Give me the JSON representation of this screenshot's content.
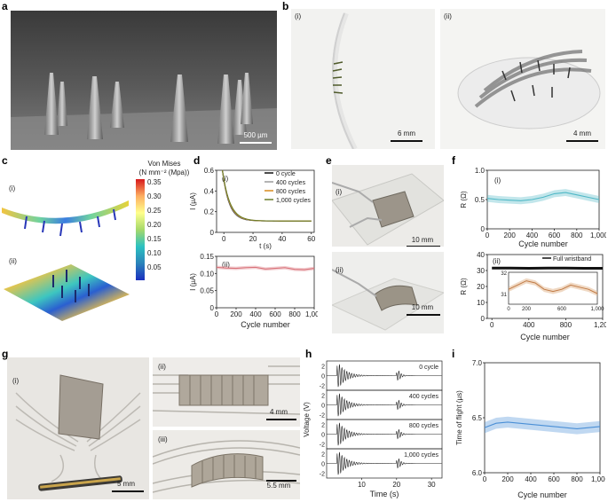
{
  "panel_labels": {
    "a": "a",
    "b": "b",
    "c": "c",
    "d": "d",
    "e": "e",
    "f": "f",
    "g": "g",
    "h": "h",
    "i": "i"
  },
  "a": {
    "scale_bar": "500 µm"
  },
  "b": {
    "sub1": "(i)",
    "sub2": "(ii)",
    "scale1": "6 mm",
    "scale2": "4 mm"
  },
  "c": {
    "sub1": "(i)",
    "sub2": "(ii)",
    "colorbar_title_1": "Von Mises",
    "colorbar_title_2": "(N mm⁻² (Mpa))",
    "colorbar_ticks": [
      "0.35",
      "0.30",
      "0.25",
      "0.20",
      "0.15",
      "0.10",
      "0.05"
    ]
  },
  "e": {
    "sub1": "(i)",
    "sub2": "(ii)",
    "scale1": "10 mm",
    "scale2": "10 mm"
  },
  "g": {
    "sub1": "(i)",
    "sub2": "(ii)",
    "sub3": "(iii)",
    "scale1": "5 mm",
    "scale2": "4 mm",
    "scale3": "5.5 mm"
  },
  "colors": {
    "black": "#111111",
    "gray": "#9a9a9a",
    "orange": "#d98b1d",
    "green": "#6b7d2a",
    "cyan": "#4fb8c6",
    "red": "#d9737a",
    "blue": "#4a8fd6",
    "tan": "#e2b48a"
  },
  "chart_data": [
    {
      "id": "d_i",
      "type": "line",
      "sub": "(i)",
      "xlabel": "t (s)",
      "ylabel": "I (µA)",
      "xlim": [
        -5,
        62
      ],
      "ylim": [
        0,
        0.6
      ],
      "xticks": [
        "0",
        "20",
        "40",
        "60"
      ],
      "yticks": [
        "0",
        "0.2",
        "0.4",
        "0.6"
      ],
      "series": [
        {
          "name": "0 cycle"
        },
        {
          "name": "400 cycles"
        },
        {
          "name": "800 cycles"
        },
        {
          "name": "1,000 cycles"
        }
      ],
      "curve": {
        "start_t": -1,
        "peak": 0.6,
        "floor": 0.11,
        "tau": 4.5,
        "t_end": 60
      }
    },
    {
      "id": "d_ii",
      "type": "line",
      "sub": "(ii)",
      "xlabel": "Cycle number",
      "ylabel": "I (µA)",
      "xlim": [
        0,
        1000
      ],
      "ylim": [
        0,
        0.15
      ],
      "xticks": [
        "0",
        "200",
        "400",
        "600",
        "800",
        "1,000"
      ],
      "yticks": [
        "0",
        "0.05",
        "0.10",
        "0.15"
      ],
      "x": [
        0,
        100,
        200,
        300,
        400,
        500,
        600,
        700,
        800,
        900,
        1000
      ],
      "y": [
        0.118,
        0.116,
        0.115,
        0.117,
        0.118,
        0.113,
        0.115,
        0.117,
        0.112,
        0.111,
        0.115
      ],
      "band": 0.005
    },
    {
      "id": "f_i",
      "type": "line",
      "sub": "(i)",
      "xlabel": "Cycle number",
      "ylabel": "R (Ω)",
      "xlim": [
        0,
        1000
      ],
      "ylim": [
        0,
        1.0
      ],
      "xticks": [
        "0",
        "200",
        "400",
        "600",
        "800",
        "1,000"
      ],
      "yticks": [
        "0",
        "0.5",
        "1.0"
      ],
      "x": [
        0,
        100,
        200,
        300,
        400,
        500,
        600,
        700,
        800,
        900,
        1000
      ],
      "y": [
        0.52,
        0.5,
        0.49,
        0.48,
        0.5,
        0.54,
        0.6,
        0.62,
        0.58,
        0.54,
        0.5
      ],
      "band": 0.06
    },
    {
      "id": "f_ii",
      "type": "line",
      "sub": "(ii)",
      "xlabel": "Cycle number",
      "ylabel": "R (Ω)",
      "xlim": [
        -50,
        1200
      ],
      "ylim": [
        0,
        40
      ],
      "xticks": [
        "0",
        "400",
        "800",
        "1,200"
      ],
      "yticks": [
        "0",
        "10",
        "20",
        "30",
        "40"
      ],
      "series": [
        {
          "name": "Full wristband"
        }
      ],
      "x": [
        0,
        200,
        400,
        600,
        800,
        1000,
        1200
      ],
      "y": [
        31.5,
        31.5,
        31.4,
        31.5,
        31.5,
        31.4,
        31.4
      ],
      "inset": {
        "xlim": [
          0,
          1000
        ],
        "ylim": [
          30.5,
          32
        ],
        "yticks": [
          "31",
          "32"
        ],
        "xticks": [
          "0",
          "200",
          "600",
          "1,000"
        ],
        "x": [
          0,
          100,
          200,
          300,
          400,
          500,
          600,
          700,
          800,
          900,
          1000
        ],
        "y": [
          31.2,
          31.4,
          31.6,
          31.5,
          31.2,
          31.1,
          31.2,
          31.4,
          31.3,
          31.2,
          31.0
        ],
        "band": 0.12
      }
    },
    {
      "id": "h",
      "type": "line",
      "xlabel": "Time (s)",
      "ylabel": "Voltage (V)",
      "xlim": [
        0,
        33
      ],
      "xticks": [
        "10",
        "20",
        "30"
      ],
      "ytick_values": [
        "2",
        "0",
        "-2"
      ],
      "series": [
        {
          "name": "0 cycle"
        },
        {
          "name": "400 cycles"
        },
        {
          "name": "800 cycles"
        },
        {
          "name": "1,000 cycles"
        }
      ],
      "echo_times": [
        3.5,
        20.5
      ]
    },
    {
      "id": "i",
      "type": "line",
      "xlabel": "Cycle number",
      "ylabel": "Time of flight (µs)",
      "xlim": [
        0,
        1000
      ],
      "ylim": [
        6.0,
        7.0
      ],
      "xticks": [
        "0",
        "200",
        "400",
        "600",
        "800",
        "1,000"
      ],
      "yticks": [
        "6.0",
        "6.5",
        "7.0"
      ],
      "x": [
        0,
        100,
        200,
        300,
        400,
        500,
        600,
        700,
        800,
        900,
        1000
      ],
      "y": [
        6.41,
        6.45,
        6.46,
        6.45,
        6.44,
        6.43,
        6.42,
        6.41,
        6.4,
        6.41,
        6.42
      ],
      "band": 0.05
    }
  ]
}
